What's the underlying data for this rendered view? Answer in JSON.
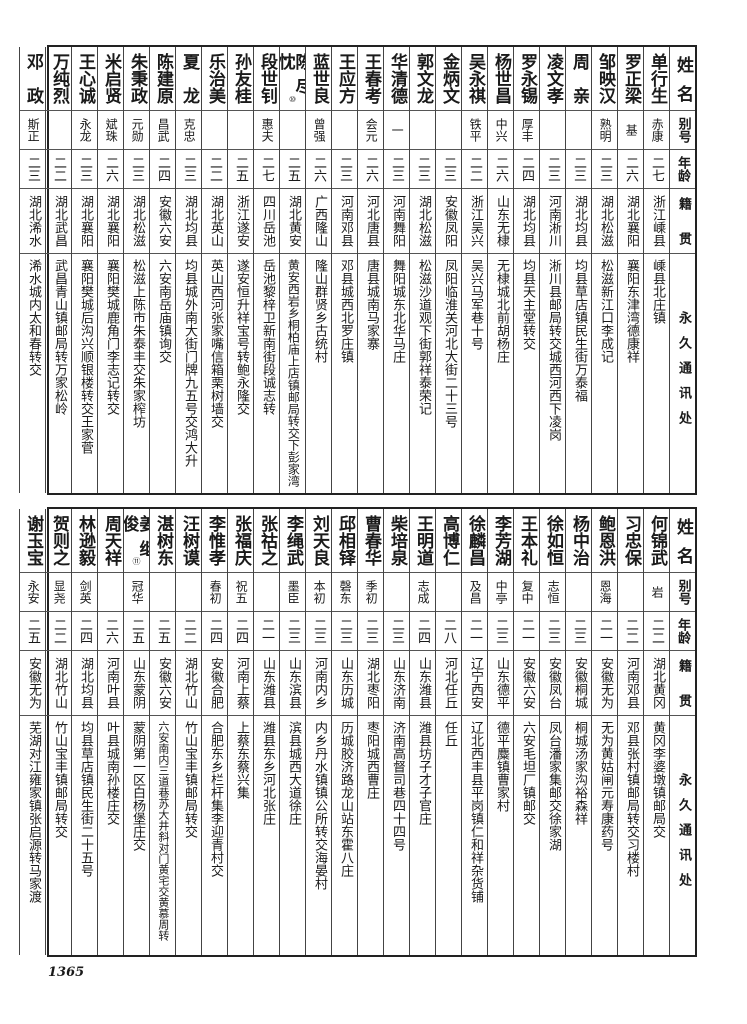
{
  "page_number": "1365",
  "tables": [
    {
      "header": {
        "name": "姓名",
        "alias": "别号",
        "age": "年龄",
        "native": "籍贯",
        "address": "永久通讯处"
      },
      "rows": [
        {
          "name": "单行生",
          "alias": "赤康",
          "age": "二七",
          "native": "浙江嵊县",
          "address": "嵊县北庄镇"
        },
        {
          "name": "罗正梁",
          "alias": "基",
          "age": "二六",
          "native": "湖北襄阳",
          "address": "襄阳东津湾德康祥"
        },
        {
          "name": "邹映汉",
          "alias": "熟明",
          "age": "二三",
          "native": "湖北松滋",
          "address": "松滋新江口李成记"
        },
        {
          "name": "周亲",
          "alias": "",
          "age": "二三",
          "native": "湖北均县",
          "address": "均县草店镇民生街万泰福"
        },
        {
          "name": "凌文孝",
          "alias": "",
          "age": "二三",
          "native": "河南淅川",
          "address": "淅川县邮局转交城西河西下凌岗"
        },
        {
          "name": "罗永锡",
          "alias": "厚丰",
          "age": "二四",
          "native": "湖北均县",
          "address": "均县天主堂转交"
        },
        {
          "name": "杨世昌",
          "alias": "中兴",
          "age": "二六",
          "native": "山东无棣",
          "address": "无棣城北前胡杨庄"
        },
        {
          "name": "吴永祺",
          "alias": "铁平",
          "age": "二二",
          "native": "浙江吴兴",
          "address": "吴兴马军巷十号"
        },
        {
          "name": "金炳文",
          "alias": "",
          "age": "二三",
          "native": "安徽凤阳",
          "address": "凤阳临淮关河北大街二十三号"
        },
        {
          "name": "郭文龙",
          "alias": "",
          "age": "二三",
          "native": "湖北松滋",
          "address": "松滋沙道观下街郭祥泰荣记"
        },
        {
          "name": "华清德",
          "alias": "一",
          "age": "二三",
          "native": "河南舞阳",
          "address": "舞阳城东北华马庄"
        },
        {
          "name": "王春考",
          "alias": "会元",
          "age": "二六",
          "native": "河北唐县",
          "address": "唐县城南马家寨"
        },
        {
          "name": "王应方",
          "alias": "",
          "age": "二三",
          "native": "河南邓县",
          "address": "邓县城西北罗庄镇"
        },
        {
          "name": "蓝世良",
          "alias": "曾强",
          "age": "二六",
          "native": "广西隆山",
          "address": "隆山群贤乡古统村"
        },
        {
          "name": "陈尽忱",
          "note": "⑩",
          "alias": "",
          "age": "二五",
          "native": "湖北黄安",
          "address": "黄安西岩乡桐柏庙上店镇邮局转交下彭家湾"
        },
        {
          "name": "段世钊",
          "alias": "惠夫",
          "age": "二七",
          "native": "四川岳池",
          "address": "岳池黎梓卫新南街段诚志转"
        },
        {
          "name": "孙友桂",
          "alias": "",
          "age": "二五",
          "native": "浙江遂安",
          "address": "遂安恒升祥宝号转鲍永隆交"
        },
        {
          "name": "乐治美",
          "alias": "",
          "age": "二二",
          "native": "湖北英山",
          "address": "英山西河张家嘴信箱栗树墙交"
        },
        {
          "name": "夏龙",
          "alias": "克忠",
          "age": "二三",
          "native": "湖北均县",
          "address": "均县城外南大街门牌九五号交鸿大升"
        },
        {
          "name": "陈建原",
          "alias": "昌武",
          "age": "二四",
          "native": "安徽六安",
          "address": "六安南岳庙镇询交"
        },
        {
          "name": "朱秉政",
          "alias": "元勋",
          "age": "二三",
          "native": "湖北松滋",
          "address": "松滋上陈市朱泰丰交朱家榨坊"
        },
        {
          "name": "米启贤",
          "alias": "斌珠",
          "age": "二六",
          "native": "湖北襄阳",
          "address": "襄阳樊城鹿角门李志记转交"
        },
        {
          "name": "王心诚",
          "alias": "永龙",
          "age": "二三",
          "native": "湖北襄阳",
          "address": "襄阳樊城后沟兴顺银楼转交王家菅"
        },
        {
          "name": "万纯烈",
          "alias": "",
          "age": "二二",
          "native": "湖北武昌",
          "address": "武昌青山镇邮局转万家松岭"
        },
        {
          "name": "邓政",
          "alias": "斯正",
          "age": "二三",
          "native": "湖北浠水",
          "address": "浠水城内太和春转交"
        }
      ]
    },
    {
      "header": {
        "name": "姓名",
        "alias": "别号",
        "age": "年龄",
        "native": "籍贯",
        "address": "永久通讯处"
      },
      "rows": [
        {
          "name": "何锦武",
          "alias": "岩",
          "age": "二二",
          "native": "湖北黄冈",
          "address": "黄冈李婆墩镇邮局交"
        },
        {
          "name": "习忠保",
          "alias": "",
          "age": "二二",
          "native": "河南邓县",
          "address": "邓县张村镇邮局转交习楼村"
        },
        {
          "name": "鲍恩洪",
          "alias": "恩海",
          "age": "二一",
          "native": "安徽无为",
          "address": "无为黄姑闸元寿康药号"
        },
        {
          "name": "杨中治",
          "alias": "",
          "age": "二三",
          "native": "安徽桐城",
          "address": "桐城汤家沟裕森祥"
        },
        {
          "name": "徐如恒",
          "alias": "志恒",
          "age": "二三",
          "native": "安徽凤台",
          "address": "凤台潘家集邮交徐家湖"
        },
        {
          "name": "王本礼",
          "alias": "复中",
          "age": "二一",
          "native": "安徽六安",
          "address": "六安毛坦厂镇邮交"
        },
        {
          "name": "李芳湖",
          "alias": "中亭",
          "age": "二三",
          "native": "山东德平",
          "address": "德平麋镇曹家村"
        },
        {
          "name": "徐麟昌",
          "alias": "及昌",
          "age": "二一",
          "native": "辽宁西安",
          "address": "辽北西丰县平岗镇仁和祥杂货铺"
        },
        {
          "name": "高博仁",
          "alias": "",
          "age": "二八",
          "native": "河北任丘",
          "address": "任丘"
        },
        {
          "name": "王明道",
          "alias": "志成",
          "age": "二四",
          "native": "山东潍县",
          "address": "潍县坊子才子官庄"
        },
        {
          "name": "柴培泉",
          "alias": "",
          "age": "二三",
          "native": "山东济南",
          "address": "济南高督司巷四十四号"
        },
        {
          "name": "曹春华",
          "alias": "季初",
          "age": "二三",
          "native": "湖北枣阳",
          "address": "枣阳城西曹庄"
        },
        {
          "name": "邱相铎",
          "alias": "磬东",
          "age": "二三",
          "native": "山东历城",
          "address": "历城胶济路龙山站东霍八庄"
        },
        {
          "name": "刘天良",
          "alias": "本初",
          "age": "二三",
          "native": "河南内乡",
          "address": "内乡丹水镇镇公所转交海晏村"
        },
        {
          "name": "李绳武",
          "alias": "墨臣",
          "age": "二三",
          "native": "山东滨县",
          "address": "滨县城西大道徐庄"
        },
        {
          "name": "张祜之",
          "alias": "",
          "age": "二一",
          "native": "山东潍县",
          "address": "潍县东乡河北张庄"
        },
        {
          "name": "张福庆",
          "alias": "祝五",
          "age": "二四",
          "native": "河南上蔡",
          "address": "上蔡东蔡兴集"
        },
        {
          "name": "李惟孝",
          "alias": "春初",
          "age": "二四",
          "native": "安徽合肥",
          "address": "合肥东乡栏杆集李迎青村交"
        },
        {
          "name": "汪树谟",
          "alias": "",
          "age": "二二",
          "native": "湖北竹山",
          "address": "竹山宝丰镇邮局转交"
        },
        {
          "name": "湛树东",
          "alias": "",
          "age": "二五",
          "native": "安徽六安",
          "address": "六安南内三道巷苏大井斜对门黄宅交黄慕周转"
        },
        {
          "name": "姜继俊",
          "note": "⑪",
          "alias": "冠华",
          "age": "二五",
          "native": "山东蒙阴",
          "address": "蒙阴第一区白杨堡庄交"
        },
        {
          "name": "周天祥",
          "alias": "",
          "age": "二六",
          "native": "河南叶县",
          "address": "叶县城南孙楼庄交"
        },
        {
          "name": "林逊毅",
          "alias": "剑英",
          "age": "二四",
          "native": "湖北均县",
          "address": "均县草店镇民生街二十五号"
        },
        {
          "name": "贺则之",
          "alias": "显尧",
          "age": "二二",
          "native": "湖北竹山",
          "address": "竹山宝丰镇邮局转交"
        },
        {
          "name": "谢玉宝",
          "alias": "永安",
          "age": "二五",
          "native": "安徽无为",
          "address": "芜湖对江雍家镇张启源转马家渡"
        }
      ]
    }
  ]
}
